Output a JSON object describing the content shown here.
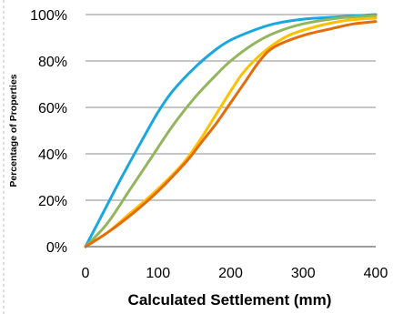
{
  "chart_data": {
    "type": "line",
    "title": "",
    "xlabel": "Calculated Settlement (mm)",
    "ylabel": "Percentage of Properties",
    "xlim": [
      0,
      400
    ],
    "ylim": [
      0,
      100
    ],
    "x_ticks": [
      "0",
      "100",
      "200",
      "300",
      "400"
    ],
    "y_ticks": [
      "0%",
      "20%",
      "40%",
      "60%",
      "80%",
      "100%"
    ],
    "grid": "horizontal",
    "legend": "none",
    "series": [
      {
        "color": "#1aa7e0",
        "points": [
          [
            0,
            0
          ],
          [
            20,
            12
          ],
          [
            50,
            30
          ],
          [
            80,
            47
          ],
          [
            100,
            58
          ],
          [
            120,
            67
          ],
          [
            150,
            77
          ],
          [
            180,
            85
          ],
          [
            200,
            89
          ],
          [
            230,
            93
          ],
          [
            260,
            96
          ],
          [
            300,
            98
          ],
          [
            350,
            99
          ],
          [
            400,
            100
          ]
        ]
      },
      {
        "color": "#92b65c",
        "points": [
          [
            0,
            0
          ],
          [
            30,
            10
          ],
          [
            60,
            24
          ],
          [
            90,
            38
          ],
          [
            120,
            52
          ],
          [
            150,
            64
          ],
          [
            180,
            74
          ],
          [
            200,
            80
          ],
          [
            230,
            87
          ],
          [
            260,
            92
          ],
          [
            300,
            96
          ],
          [
            350,
            98.5
          ],
          [
            400,
            99.5
          ]
        ]
      },
      {
        "color": "#ffc000",
        "points": [
          [
            0,
            0
          ],
          [
            30,
            6
          ],
          [
            60,
            14
          ],
          [
            90,
            22
          ],
          [
            120,
            31
          ],
          [
            140,
            38
          ],
          [
            160,
            47
          ],
          [
            180,
            57
          ],
          [
            200,
            67
          ],
          [
            220,
            76
          ],
          [
            250,
            85
          ],
          [
            280,
            91
          ],
          [
            320,
            95
          ],
          [
            360,
            97.5
          ],
          [
            400,
            98.5
          ]
        ]
      },
      {
        "color": "#e46c0a",
        "points": [
          [
            0,
            0
          ],
          [
            30,
            6
          ],
          [
            60,
            13
          ],
          [
            90,
            21
          ],
          [
            110,
            27
          ],
          [
            140,
            37
          ],
          [
            160,
            45
          ],
          [
            180,
            53
          ],
          [
            200,
            62
          ],
          [
            220,
            71
          ],
          [
            240,
            80
          ],
          [
            260,
            86
          ],
          [
            300,
            91
          ],
          [
            340,
            94
          ],
          [
            370,
            96
          ],
          [
            400,
            97
          ]
        ]
      }
    ]
  }
}
